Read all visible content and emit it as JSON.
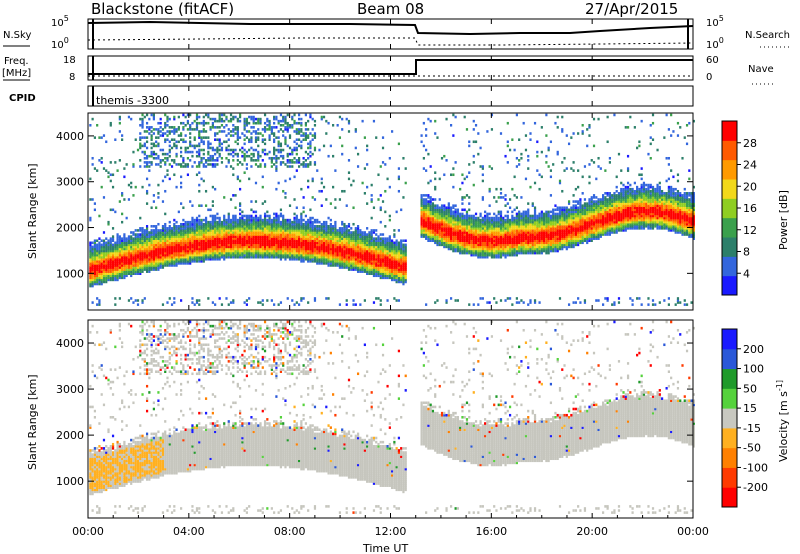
{
  "header": {
    "station": "Blackstone (fitACF)",
    "beam": "Beam 08",
    "date": "27/Apr/2015"
  },
  "top_panels": {
    "noise": {
      "left_label": "N.Sky",
      "right_label": "N.Search",
      "left_ticks": [
        "10^5",
        "10^0"
      ],
      "right_ticks": [
        "10^5",
        "10^0"
      ]
    },
    "freq": {
      "left_label_1": "Freq.",
      "left_label_2": "[MHz]",
      "right_label": "Nave",
      "left_ticks": [
        "18",
        "8"
      ],
      "right_ticks": [
        "60",
        "0"
      ]
    },
    "cpid": {
      "label": "CPID",
      "value": "themis -3300"
    }
  },
  "chart_data": [
    {
      "type": "heatmap",
      "name": "power",
      "ylabel": "Slant Range [km]",
      "ylim": [
        200,
        4500
      ],
      "y_ticks": [
        "1000",
        "2000",
        "3000",
        "4000"
      ],
      "colorbar_label": "Power [dB]",
      "colorbar_ticks": [
        "4",
        "8",
        "12",
        "16",
        "20",
        "24",
        "28"
      ],
      "colorbar_range": [
        0,
        30
      ]
    },
    {
      "type": "heatmap",
      "name": "velocity",
      "ylabel": "Slant Range [km]",
      "ylim": [
        200,
        4500
      ],
      "y_ticks": [
        "1000",
        "2000",
        "3000",
        "4000"
      ],
      "colorbar_label": "Velocity [m s^-1]",
      "colorbar_ticks": [
        "200",
        "100",
        "50",
        "15",
        "-15",
        "-50",
        "-100",
        "-200"
      ]
    }
  ],
  "x_axis": {
    "label": "Time UT",
    "ticks": [
      "00:00",
      "04:00",
      "08:00",
      "12:00",
      "16:00",
      "20:00",
      "00:00"
    ],
    "range_hours": [
      0,
      24
    ]
  },
  "colors": {
    "power_scale": [
      "#1a1aff",
      "#3366dd",
      "#2c7f6a",
      "#3aa04c",
      "#8fce22",
      "#f2d81a",
      "#ff9a00",
      "#ff5a00",
      "#ff0000"
    ],
    "velocity_scale": [
      "#1a1aff",
      "#2a58d8",
      "#1f9a2a",
      "#55d23c",
      "#c8c8c0",
      "#ffb020",
      "#ff8000",
      "#ff3a00",
      "#ff0000"
    ],
    "scatter_gray": "#c6c6be"
  }
}
